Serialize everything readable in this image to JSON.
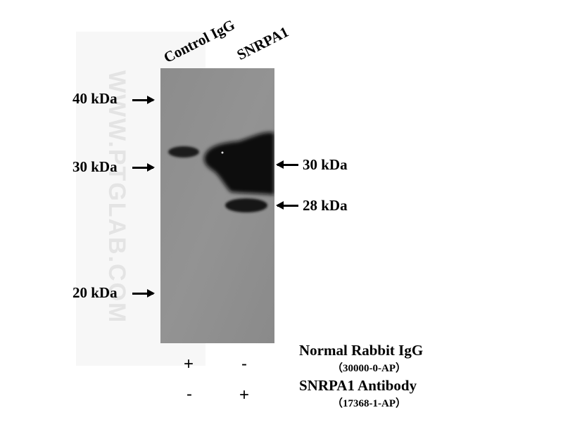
{
  "lanes": [
    "Control IgG",
    "SNRPA1"
  ],
  "markers_left": [
    "40 kDa",
    "30 kDa",
    "20 kDa"
  ],
  "markers_right": [
    "30 kDa",
    "28 kDa"
  ],
  "watermark": "WWW.PTGLAB.COM",
  "legend": [
    {
      "title": "Normal Rabbit IgG",
      "catalog": "（30000-0-AP）",
      "signs": [
        "+",
        "-"
      ]
    },
    {
      "title": "SNRPA1 Antibody",
      "catalog": "（17368-1-AP）",
      "signs": [
        "-",
        "+"
      ]
    }
  ],
  "colors": {
    "blot_background": "#8f8f8f",
    "band": "#111111"
  }
}
